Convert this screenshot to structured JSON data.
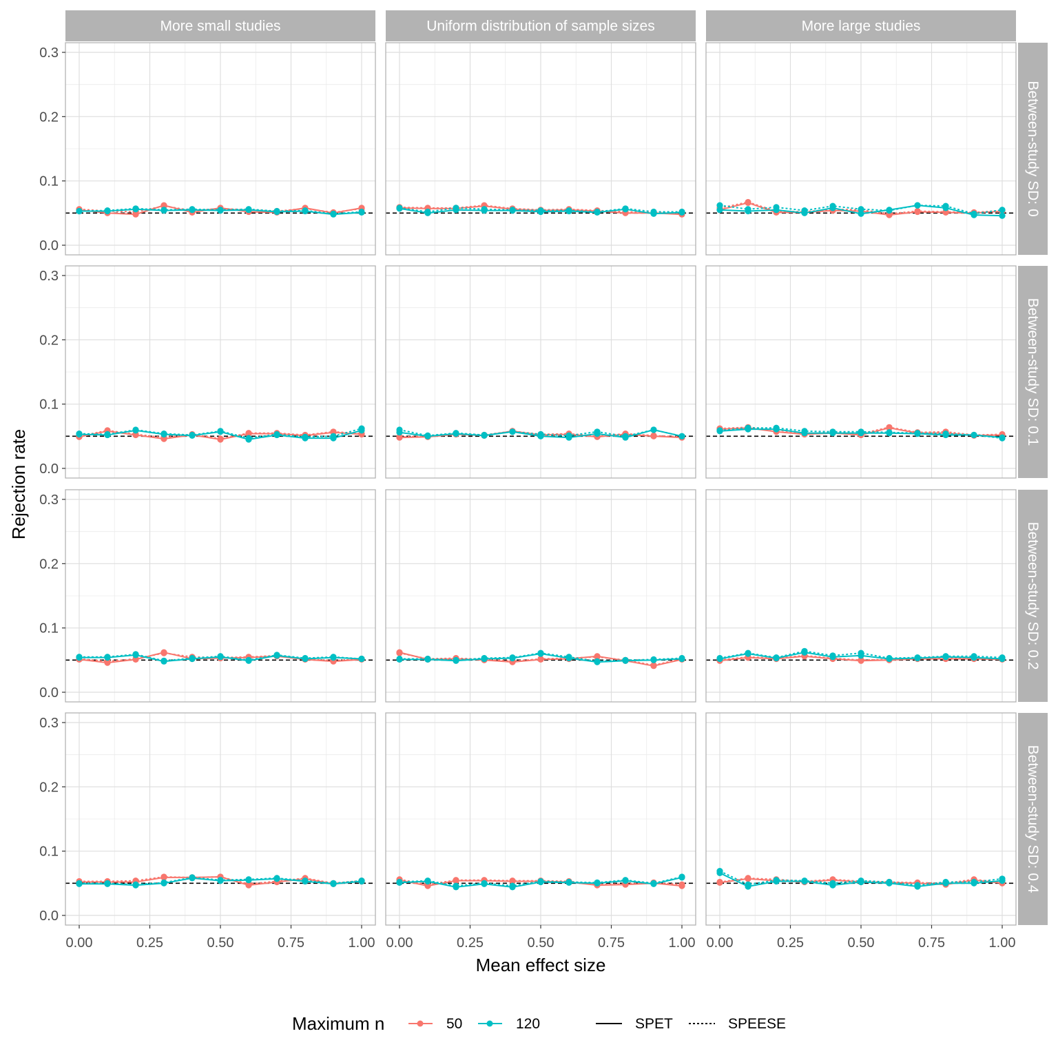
{
  "chart_data": {
    "type": "line",
    "xlabel": "Mean effect size",
    "ylabel": "Rejection rate",
    "xlim": [
      0,
      1
    ],
    "ylim": [
      0,
      0.3
    ],
    "x_ticks": [
      "0.00",
      "0.25",
      "0.50",
      "0.75",
      "1.00"
    ],
    "y_ticks": [
      "0.0",
      "0.1",
      "0.2",
      "0.3"
    ],
    "reference_line": 0.05,
    "x": [
      0,
      0.1,
      0.2,
      0.3,
      0.4,
      0.5,
      0.6,
      0.7,
      0.8,
      0.9,
      1.0
    ],
    "grid": true,
    "legend_position": "bottom",
    "col_facets": [
      "More small studies",
      "Uniform distribution of sample sizes",
      "More large studies"
    ],
    "row_facets": [
      "Between-study SD: 0",
      "Between-study SD: 0.1",
      "Between-study SD: 0.2",
      "Between-study SD: 0.4"
    ],
    "legend": {
      "color_title": "Maximum n",
      "colors": [
        {
          "label": "50",
          "color": "#F8766D"
        },
        {
          "label": "120",
          "color": "#00BFC4"
        }
      ],
      "linetypes": [
        {
          "label": "SPET",
          "dash": "solid"
        },
        {
          "label": "SPEESE",
          "dash": "dotted"
        }
      ]
    },
    "panels": [
      [
        {
          "50": {
            "SPET": [
              0.055,
              0.05,
              0.048,
              0.062,
              0.051,
              0.058,
              0.052,
              0.051,
              0.058,
              0.05,
              0.058
            ],
            "SPEESE": [
              0.056,
              0.053,
              0.052,
              0.061,
              0.054,
              0.057,
              0.055,
              0.053,
              0.057,
              0.051,
              0.057
            ]
          },
          "120": {
            "SPET": [
              0.053,
              0.053,
              0.056,
              0.054,
              0.055,
              0.054,
              0.055,
              0.052,
              0.053,
              0.048,
              0.051
            ],
            "SPEESE": [
              0.053,
              0.054,
              0.057,
              0.055,
              0.056,
              0.055,
              0.056,
              0.053,
              0.054,
              0.049,
              0.052
            ]
          }
        },
        {
          "50": {
            "SPET": [
              0.058,
              0.057,
              0.057,
              0.061,
              0.056,
              0.054,
              0.055,
              0.053,
              0.05,
              0.05,
              0.048
            ],
            "SPEESE": [
              0.059,
              0.058,
              0.058,
              0.062,
              0.057,
              0.055,
              0.056,
              0.054,
              0.052,
              0.051,
              0.05
            ]
          },
          "120": {
            "SPET": [
              0.057,
              0.05,
              0.055,
              0.054,
              0.054,
              0.052,
              0.053,
              0.051,
              0.056,
              0.049,
              0.051
            ],
            "SPEESE": [
              0.058,
              0.052,
              0.058,
              0.056,
              0.055,
              0.054,
              0.054,
              0.052,
              0.057,
              0.052,
              0.052
            ]
          }
        },
        {
          "50": {
            "SPET": [
              0.055,
              0.066,
              0.051,
              0.051,
              0.054,
              0.053,
              0.047,
              0.052,
              0.051,
              0.05,
              0.053
            ],
            "SPEESE": [
              0.058,
              0.067,
              0.053,
              0.052,
              0.056,
              0.055,
              0.049,
              0.053,
              0.052,
              0.051,
              0.054
            ]
          },
          "120": {
            "SPET": [
              0.055,
              0.053,
              0.055,
              0.05,
              0.058,
              0.049,
              0.055,
              0.062,
              0.058,
              0.047,
              0.046
            ],
            "SPEESE": [
              0.062,
              0.056,
              0.059,
              0.054,
              0.061,
              0.056,
              0.054,
              0.062,
              0.061,
              0.049,
              0.055
            ]
          }
        }
      ],
      [
        {
          "50": {
            "SPET": [
              0.049,
              0.058,
              0.052,
              0.046,
              0.052,
              0.045,
              0.054,
              0.054,
              0.051,
              0.056,
              0.053
            ],
            "SPEESE": [
              0.05,
              0.059,
              0.053,
              0.048,
              0.053,
              0.046,
              0.055,
              0.055,
              0.052,
              0.057,
              0.054
            ]
          },
          "120": {
            "SPET": [
              0.053,
              0.052,
              0.059,
              0.053,
              0.051,
              0.057,
              0.045,
              0.052,
              0.047,
              0.047,
              0.059
            ],
            "SPEESE": [
              0.054,
              0.053,
              0.06,
              0.054,
              0.052,
              0.058,
              0.047,
              0.053,
              0.049,
              0.05,
              0.062
            ]
          }
        },
        {
          "50": {
            "SPET": [
              0.048,
              0.049,
              0.053,
              0.051,
              0.058,
              0.052,
              0.053,
              0.049,
              0.053,
              0.05,
              0.048
            ],
            "SPEESE": [
              0.049,
              0.05,
              0.054,
              0.052,
              0.058,
              0.053,
              0.054,
              0.05,
              0.054,
              0.051,
              0.049
            ]
          },
          "120": {
            "SPET": [
              0.056,
              0.05,
              0.054,
              0.051,
              0.057,
              0.05,
              0.048,
              0.054,
              0.048,
              0.06,
              0.05
            ],
            "SPEESE": [
              0.06,
              0.051,
              0.055,
              0.052,
              0.057,
              0.053,
              0.051,
              0.057,
              0.05,
              0.06,
              0.05
            ]
          }
        },
        {
          "50": {
            "SPET": [
              0.061,
              0.063,
              0.057,
              0.053,
              0.055,
              0.052,
              0.063,
              0.055,
              0.055,
              0.051,
              0.052
            ],
            "SPEESE": [
              0.062,
              0.064,
              0.06,
              0.054,
              0.056,
              0.054,
              0.064,
              0.056,
              0.057,
              0.052,
              0.053
            ]
          },
          "120": {
            "SPET": [
              0.058,
              0.061,
              0.061,
              0.055,
              0.055,
              0.055,
              0.055,
              0.054,
              0.052,
              0.052,
              0.048
            ],
            "SPEESE": [
              0.059,
              0.063,
              0.063,
              0.058,
              0.057,
              0.057,
              0.056,
              0.055,
              0.054,
              0.052,
              0.047
            ]
          }
        }
      ],
      [
        {
          "50": {
            "SPET": [
              0.051,
              0.046,
              0.051,
              0.062,
              0.052,
              0.053,
              0.054,
              0.056,
              0.051,
              0.048,
              0.051
            ],
            "SPEESE": [
              0.052,
              0.048,
              0.052,
              0.061,
              0.055,
              0.054,
              0.055,
              0.057,
              0.052,
              0.049,
              0.052
            ]
          },
          "120": {
            "SPET": [
              0.054,
              0.054,
              0.058,
              0.048,
              0.052,
              0.055,
              0.049,
              0.057,
              0.052,
              0.054,
              0.052
            ],
            "SPEESE": [
              0.055,
              0.055,
              0.059,
              0.049,
              0.053,
              0.056,
              0.05,
              0.058,
              0.053,
              0.055,
              0.052
            ]
          }
        },
        {
          "50": {
            "SPET": [
              0.062,
              0.051,
              0.052,
              0.05,
              0.047,
              0.051,
              0.052,
              0.056,
              0.049,
              0.041,
              0.051
            ],
            "SPEESE": [
              0.061,
              0.052,
              0.053,
              0.051,
              0.048,
              0.052,
              0.053,
              0.055,
              0.05,
              0.042,
              0.052
            ]
          },
          "120": {
            "SPET": [
              0.051,
              0.051,
              0.049,
              0.052,
              0.053,
              0.06,
              0.053,
              0.047,
              0.049,
              0.05,
              0.052
            ],
            "SPEESE": [
              0.052,
              0.052,
              0.05,
              0.053,
              0.054,
              0.061,
              0.055,
              0.048,
              0.05,
              0.051,
              0.053
            ]
          }
        },
        {
          "50": {
            "SPET": [
              0.049,
              0.054,
              0.052,
              0.056,
              0.052,
              0.049,
              0.05,
              0.052,
              0.052,
              0.052,
              0.051
            ],
            "SPEESE": [
              0.05,
              0.055,
              0.053,
              0.057,
              0.053,
              0.05,
              0.051,
              0.053,
              0.053,
              0.053,
              0.052
            ]
          },
          "120": {
            "SPET": [
              0.052,
              0.06,
              0.053,
              0.062,
              0.055,
              0.057,
              0.052,
              0.053,
              0.055,
              0.054,
              0.052
            ],
            "SPEESE": [
              0.053,
              0.061,
              0.054,
              0.064,
              0.057,
              0.061,
              0.053,
              0.054,
              0.056,
              0.056,
              0.054
            ]
          }
        }
      ],
      [
        {
          "50": {
            "SPET": [
              0.052,
              0.052,
              0.052,
              0.059,
              0.059,
              0.06,
              0.047,
              0.052,
              0.057,
              0.049,
              0.053
            ],
            "SPEESE": [
              0.053,
              0.053,
              0.054,
              0.06,
              0.059,
              0.06,
              0.049,
              0.053,
              0.058,
              0.05,
              0.054
            ]
          },
          "120": {
            "SPET": [
              0.049,
              0.049,
              0.047,
              0.05,
              0.058,
              0.054,
              0.055,
              0.057,
              0.053,
              0.049,
              0.053
            ],
            "SPEESE": [
              0.05,
              0.05,
              0.048,
              0.051,
              0.059,
              0.055,
              0.056,
              0.058,
              0.054,
              0.05,
              0.054
            ]
          }
        },
        {
          "50": {
            "SPET": [
              0.055,
              0.046,
              0.054,
              0.054,
              0.053,
              0.053,
              0.052,
              0.047,
              0.048,
              0.05,
              0.046
            ],
            "SPEESE": [
              0.056,
              0.048,
              0.055,
              0.055,
              0.054,
              0.054,
              0.053,
              0.048,
              0.049,
              0.051,
              0.048
            ]
          },
          "120": {
            "SPET": [
              0.051,
              0.053,
              0.044,
              0.049,
              0.044,
              0.052,
              0.051,
              0.05,
              0.054,
              0.049,
              0.059
            ],
            "SPEESE": [
              0.052,
              0.054,
              0.046,
              0.05,
              0.046,
              0.053,
              0.052,
              0.051,
              0.055,
              0.05,
              0.06
            ]
          }
        },
        {
          "50": {
            "SPET": [
              0.051,
              0.057,
              0.054,
              0.052,
              0.055,
              0.052,
              0.051,
              0.05,
              0.048,
              0.055,
              0.05
            ],
            "SPEESE": [
              0.052,
              0.058,
              0.056,
              0.053,
              0.056,
              0.053,
              0.052,
              0.051,
              0.05,
              0.056,
              0.051
            ]
          },
          "120": {
            "SPET": [
              0.066,
              0.045,
              0.053,
              0.053,
              0.047,
              0.052,
              0.05,
              0.045,
              0.05,
              0.05,
              0.054
            ],
            "SPEESE": [
              0.069,
              0.048,
              0.055,
              0.054,
              0.05,
              0.054,
              0.052,
              0.047,
              0.052,
              0.052,
              0.057
            ]
          }
        }
      ]
    ]
  }
}
